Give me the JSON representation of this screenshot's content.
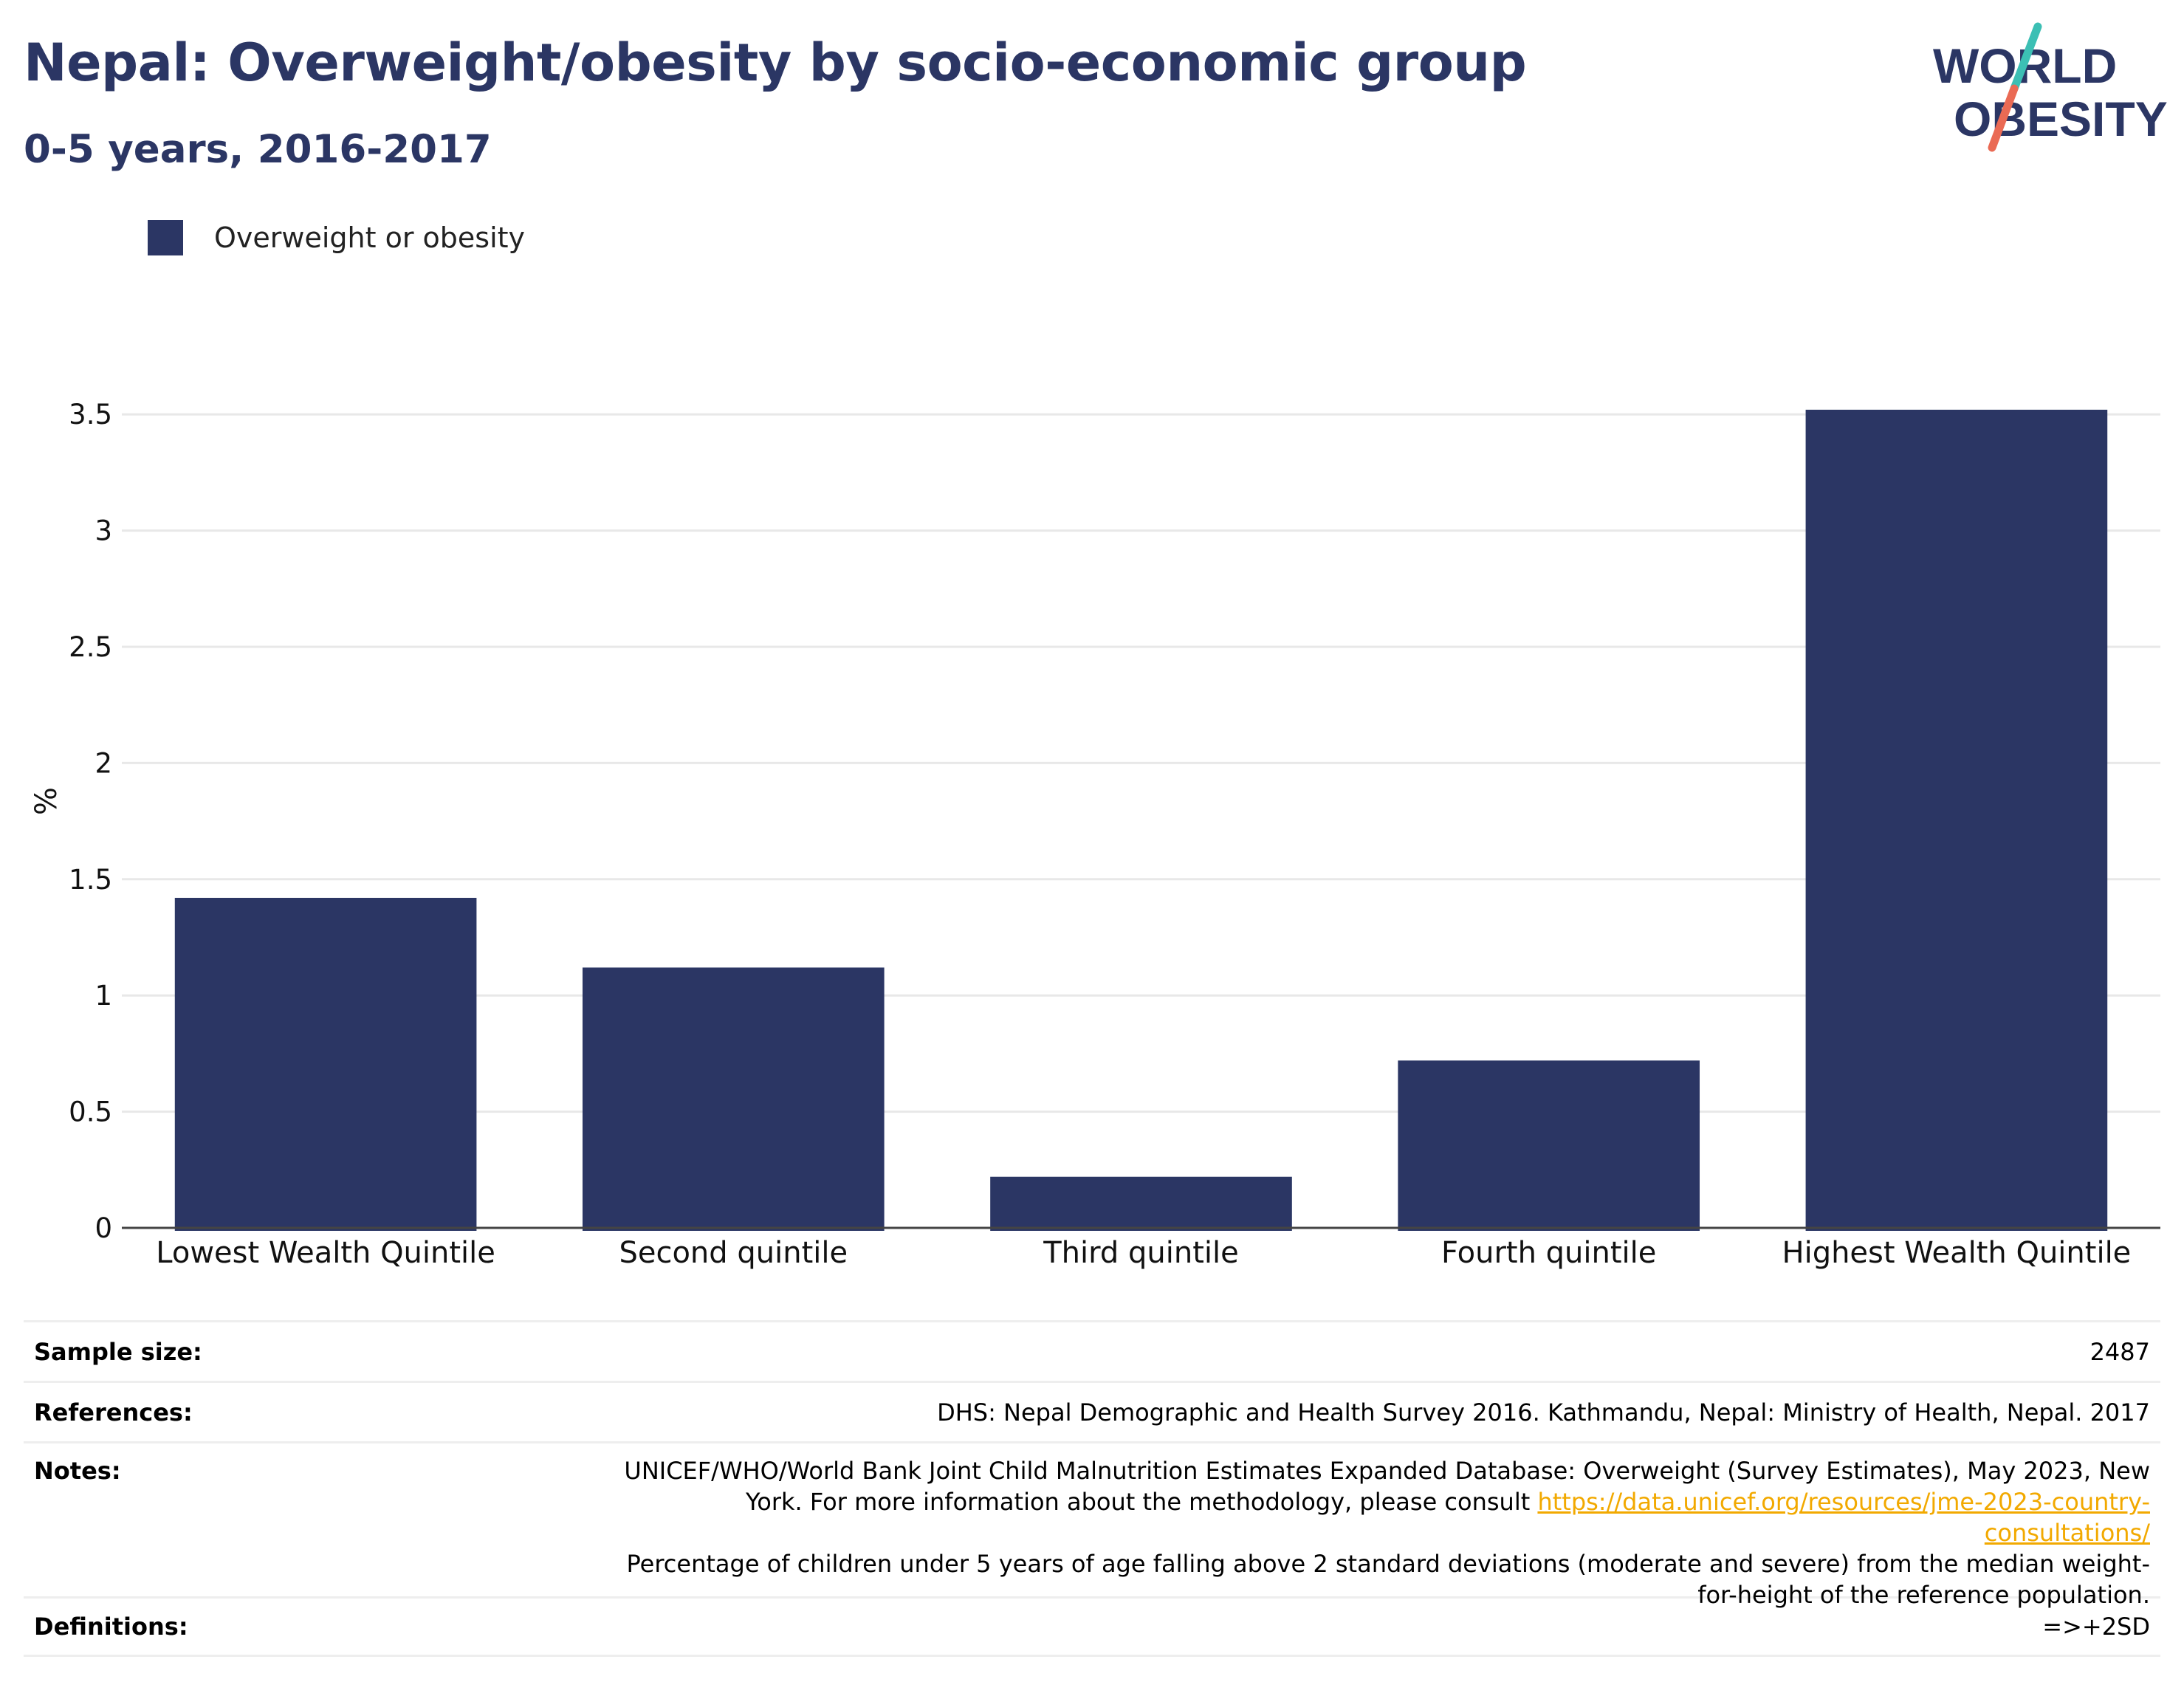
{
  "header": {
    "title": "Nepal: Overweight/obesity by socio-economic group",
    "subtitle": "0-5 years, 2016-2017",
    "logo": {
      "line1": "WORLD",
      "line2": "OBESITY",
      "text_color": "#2b3664",
      "slash_top_color": "#3cbfb4",
      "slash_bottom_color": "#ea6a54"
    }
  },
  "legend": {
    "items": [
      {
        "label": "Overweight or obesity",
        "color": "#2b3664"
      }
    ],
    "placement": "top-left"
  },
  "chart_data": {
    "type": "bar",
    "title": "Nepal: Overweight/obesity by socio-economic group",
    "subtitle": "0-5 years, 2016-2017",
    "ylabel": "%",
    "xlabel": "",
    "categories": [
      "Lowest Wealth Quintile",
      "Second quintile",
      "Third quintile",
      "Fourth quintile",
      "Highest Wealth Quintile"
    ],
    "series": [
      {
        "name": "Overweight or obesity",
        "values": [
          1.42,
          1.12,
          0.22,
          0.72,
          3.52
        ],
        "color": "#2b3664"
      }
    ],
    "ylim": [
      0,
      3.6
    ],
    "yticks": [
      0,
      0.5,
      1,
      1.5,
      2,
      2.5,
      3,
      3.5
    ],
    "ytick_labels": [
      "0",
      "0.5",
      "1",
      "1.5",
      "2",
      "2.5",
      "3",
      "3.5"
    ],
    "grid": true
  },
  "info": {
    "sample_size_label": "Sample size:",
    "sample_size_value": "2487",
    "references_label": "References:",
    "references_value": "DHS: Nepal Demographic and Health Survey 2016. Kathmandu, Nepal: Ministry of Health, Nepal. 2017",
    "notes_label": "Notes:",
    "notes_part1": "UNICEF/WHO/World Bank Joint Child Malnutrition Estimates Expanded Database: Overweight (Survey Estimates), May 2023, New York. For more information about the methodology, please consult ",
    "notes_link": "https://data.unicef.org/resources/jme-2023-country-consultations/",
    "notes_part2": "Percentage of children under 5 years of age falling above 2 standard deviations (moderate and severe) from the median weight-for-height of the reference population.",
    "definitions_label": "Definitions:",
    "definitions_value": "=>+2SD"
  }
}
